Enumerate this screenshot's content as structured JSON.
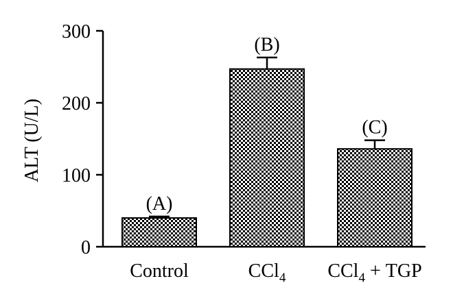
{
  "chart_data": {
    "type": "bar",
    "ylabel": "ALT (U/L)",
    "xlabel": "",
    "title": "",
    "ylim": [
      0,
      300
    ],
    "yticks": [
      0,
      100,
      200,
      300
    ],
    "categories": [
      {
        "base": "Control",
        "sub": "",
        "suffix": ""
      },
      {
        "base": "CCl",
        "sub": "4",
        "suffix": ""
      },
      {
        "base": "CCl",
        "sub": "4",
        "suffix": " + TGP"
      }
    ],
    "values": [
      40,
      247,
      136
    ],
    "errors": [
      2,
      16,
      12
    ],
    "annotations": [
      "(A)",
      "(B)",
      "(C)"
    ],
    "bar_pattern": "checkerboard",
    "colors": {
      "bar_dark": "#000000",
      "bar_light": "#ffffff",
      "axis": "#000000"
    }
  }
}
